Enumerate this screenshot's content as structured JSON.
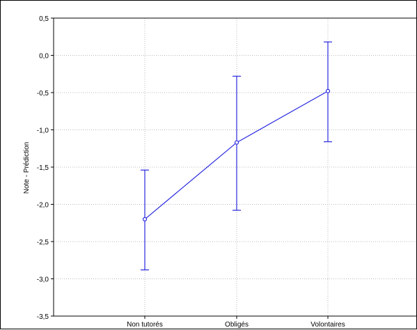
{
  "chart_data": {
    "type": "line",
    "title": "",
    "xlabel": "",
    "ylabel": "Note - Prédiction",
    "categories": [
      "Non tutorés",
      "Obligés",
      "Volontaires"
    ],
    "series": [
      {
        "values": [
          -2.2,
          -1.17,
          -0.48
        ],
        "error_low": [
          -2.88,
          -2.08,
          -1.16
        ],
        "error_high": [
          -1.54,
          -0.28,
          0.18
        ]
      }
    ],
    "ylim": [
      -3.5,
      0.5
    ],
    "yticks": [
      "0,5",
      "0,0",
      "-0,5",
      "-1,0",
      "-1,5",
      "-2,0",
      "-2,5",
      "-3,0",
      "-3,5"
    ],
    "ytick_values": [
      0.5,
      0.0,
      -0.5,
      -1.0,
      -1.5,
      -2.0,
      -2.5,
      -3.0,
      -3.5
    ],
    "grid": true,
    "line_color": "#2828e0",
    "grid_color": "#b8b8b8"
  }
}
